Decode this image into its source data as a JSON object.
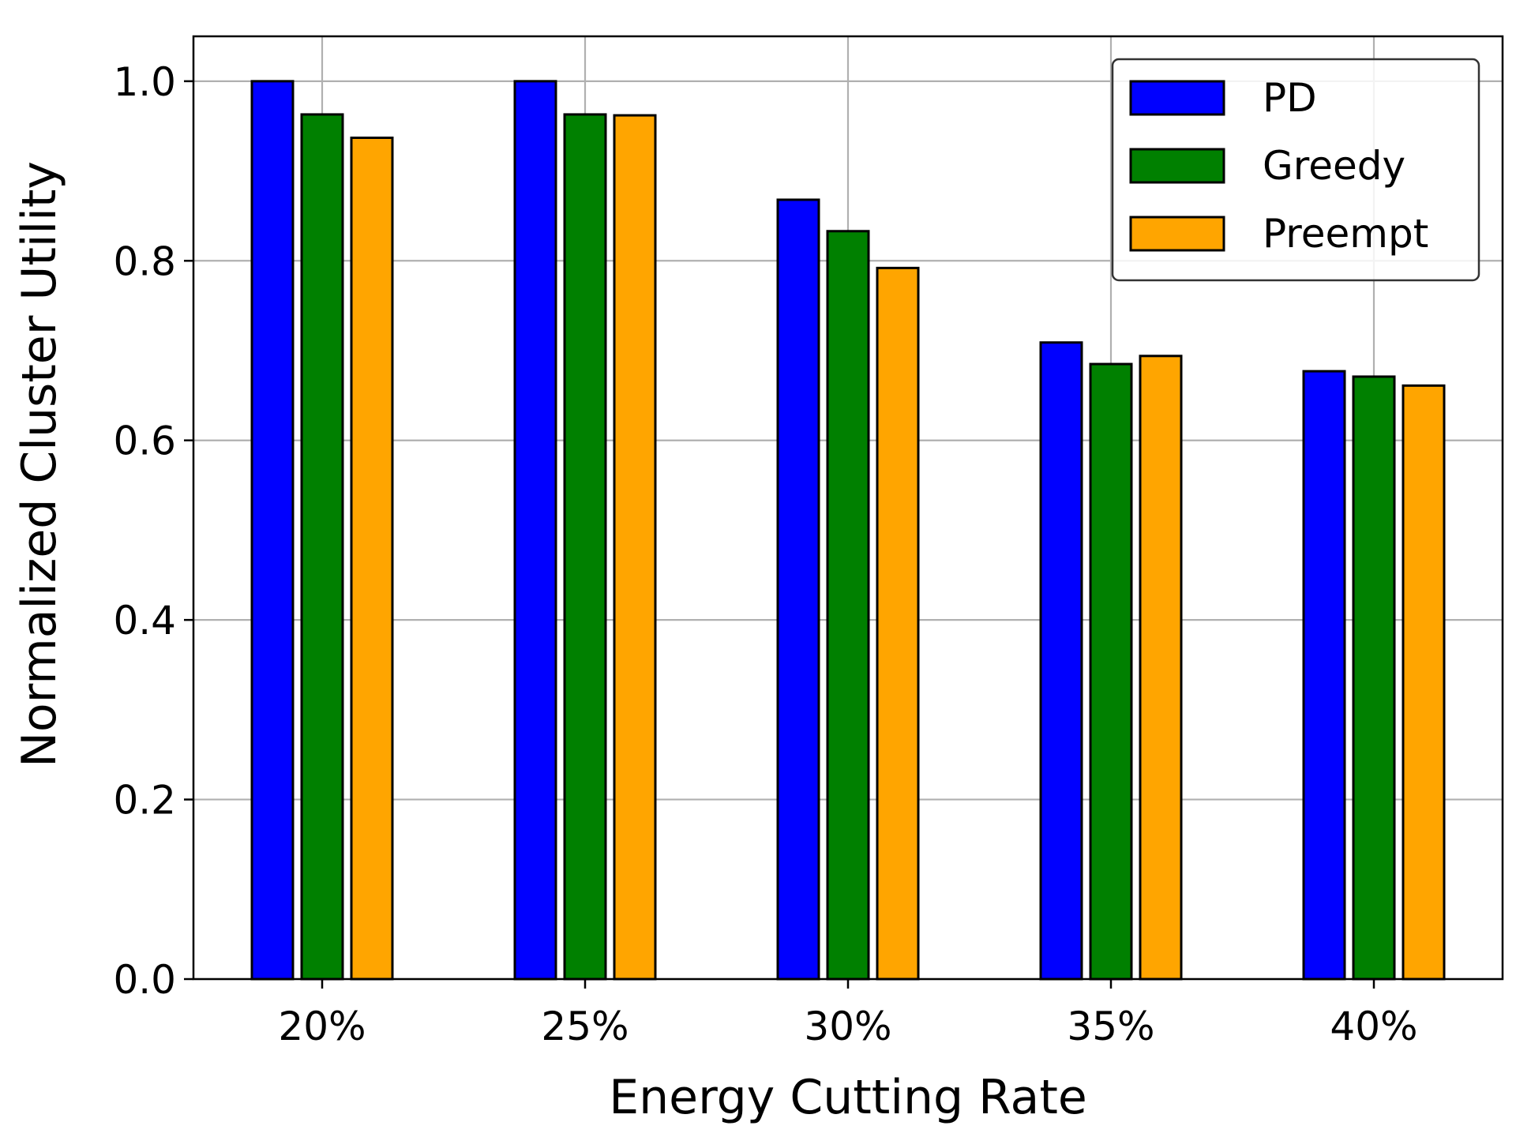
{
  "chart_data": {
    "type": "bar",
    "xlabel": "Energy Cutting Rate",
    "ylabel": "Normalized Cluster Utility",
    "categories": [
      "20%",
      "25%",
      "30%",
      "35%",
      "40%"
    ],
    "series": [
      {
        "name": "PD",
        "color": "#0000ff",
        "values": [
          1.0,
          1.0,
          0.868,
          0.709,
          0.677
        ]
      },
      {
        "name": "Greedy",
        "color": "#008000",
        "values": [
          0.963,
          0.963,
          0.833,
          0.685,
          0.671
        ]
      },
      {
        "name": "Preempt",
        "color": "#ffa500",
        "values": [
          0.937,
          0.962,
          0.792,
          0.694,
          0.661
        ]
      }
    ],
    "ylim": [
      0,
      1.05
    ],
    "yticks": [
      "0.0",
      "0.2",
      "0.4",
      "0.6",
      "0.8",
      "1.0"
    ],
    "grid": true,
    "legend_position": "top-right"
  }
}
